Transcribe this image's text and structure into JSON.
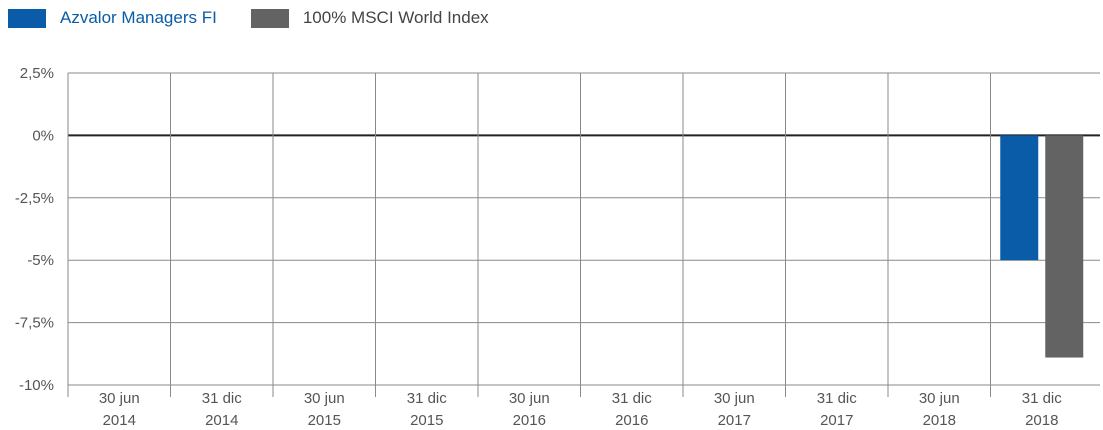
{
  "chart_data": {
    "type": "bar",
    "title": "",
    "xlabel": "",
    "ylabel": "",
    "categories": [
      [
        "30 jun",
        "2014"
      ],
      [
        "31 dic",
        "2014"
      ],
      [
        "30 jun",
        "2015"
      ],
      [
        "31 dic",
        "2015"
      ],
      [
        "30 jun",
        "2016"
      ],
      [
        "31 dic",
        "2016"
      ],
      [
        "30 jun",
        "2017"
      ],
      [
        "31 dic",
        "2017"
      ],
      [
        "30 jun",
        "2018"
      ],
      [
        "31 dic",
        "2018"
      ]
    ],
    "series": [
      {
        "name": "Azvalor Managers FI",
        "color": "#0A5CA8",
        "values": [
          null,
          null,
          null,
          null,
          null,
          null,
          null,
          null,
          null,
          -5.0
        ]
      },
      {
        "name": "100% MSCI World Index",
        "color": "#636363",
        "values": [
          null,
          null,
          null,
          null,
          null,
          null,
          null,
          null,
          null,
          -8.9
        ]
      }
    ],
    "ylim": [
      -10,
      2.5
    ],
    "yticks": [
      2.5,
      0,
      -2.5,
      -5,
      -7.5,
      -10
    ],
    "ytick_labels": [
      "2,5%",
      "0%",
      "-2,5%",
      "-5%",
      "-7,5%",
      "-10%"
    ],
    "grid": true,
    "legend_position": "top-left"
  },
  "legend": {
    "items": [
      {
        "label": "Azvalor Managers FI",
        "color": "#0A5CA8",
        "text_color": "#0A5CA8"
      },
      {
        "label": "100% MSCI World Index",
        "color": "#636363",
        "text_color": "#444444"
      }
    ]
  }
}
